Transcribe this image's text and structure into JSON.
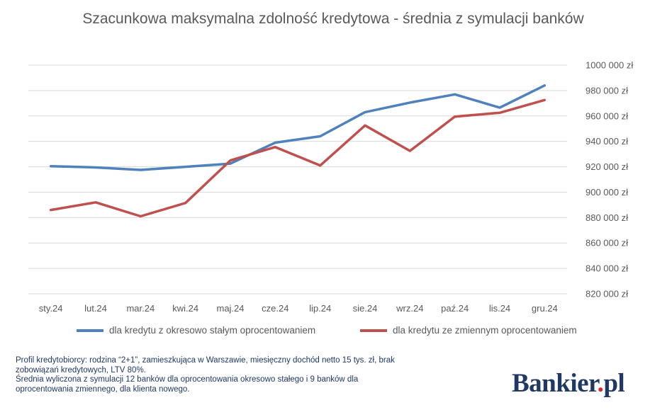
{
  "chart_data": {
    "type": "line",
    "title": "Szacunkowa maksymalna zdolność kredytowa - średnia z symulacji banków",
    "categories": [
      "sty.24",
      "lut.24",
      "mar.24",
      "kwi.24",
      "maj.24",
      "cze.24",
      "lip.24",
      "sie.24",
      "wrz.24",
      "paź.24",
      "lis.24",
      "gru.24"
    ],
    "series": [
      {
        "name": "dla kredytu z okresowo stałym oprocentowaniem",
        "color": "#4f81bd",
        "values": [
          920500,
          919500,
          917500,
          920000,
          922500,
          939000,
          944000,
          963000,
          970500,
          977000,
          966500,
          984000
        ]
      },
      {
        "name": "dla kredytu ze zmiennym oprocentowaniem",
        "color": "#c0504d",
        "values": [
          886000,
          892000,
          881000,
          891500,
          925000,
          935500,
          921000,
          952500,
          932500,
          959500,
          962500,
          972500
        ]
      }
    ],
    "ylim": [
      820000,
      1000000
    ],
    "yticks": [
      820000,
      840000,
      860000,
      880000,
      900000,
      920000,
      940000,
      960000,
      980000,
      1000000
    ],
    "ytick_labels": [
      "820 000 zł",
      "840 000 zł",
      "860 000 zł",
      "880 000 zł",
      "900 000 zł",
      "920 000 zł",
      "940 000 zł",
      "960 000 zł",
      "980 000 zł",
      "1000 000 zł"
    ],
    "axis_side": "right",
    "grid": true,
    "legend": "bottom"
  },
  "notes": [
    "Profil kredytobiorcy: rodzina “2+1”, zamieszkująca w Warszawie, miesięczny dochód netto 15 tys. zł, brak",
    "zobowiązań kredytowych, LTV 80%.",
    "Średnia wyliczona z symulacji 12 banków dla oprocentowania okresowo stałego i 9 banków dla",
    "oprocentowania zmiennego, dla klienta nowego."
  ],
  "logo": {
    "name": "Bankier",
    "dot": ".",
    "suffix": "pl"
  }
}
